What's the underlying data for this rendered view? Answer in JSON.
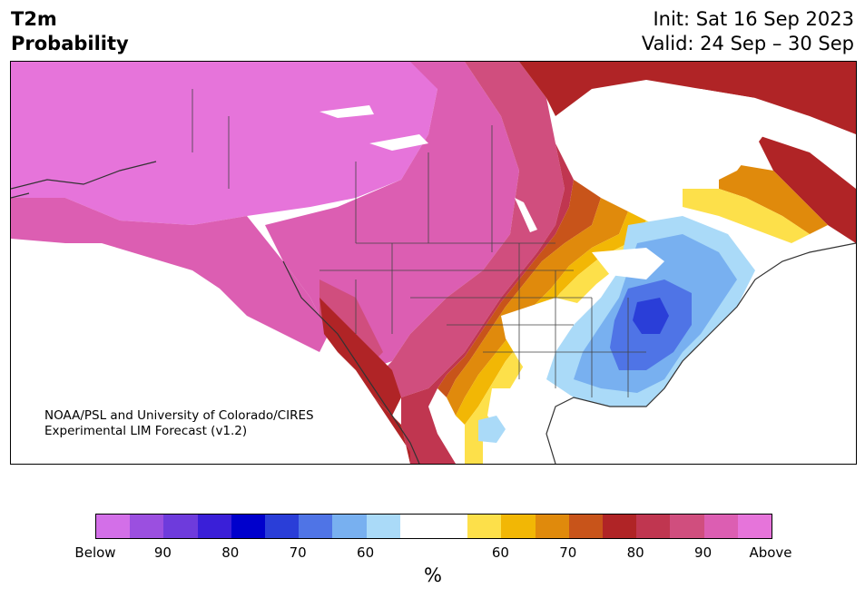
{
  "header": {
    "title_line1": "T2m",
    "title_line2": "Probability",
    "init": "Init: Sat 16 Sep 2023",
    "valid": "Valid: 24 Sep – 30 Sep"
  },
  "credit": {
    "line1": "NOAA/PSL and University of Colorado/CIRES",
    "line2": "Experimental LIM Forecast (v1.2)"
  },
  "colorbar": {
    "colors": [
      "#d36fe8",
      "#9b4fe0",
      "#6e3bdc",
      "#3a1fd8",
      "#0000cc",
      "#2a3ed8",
      "#4f74e6",
      "#78b0f0",
      "#aadaf8",
      "#ffffff",
      "#ffffff",
      "#fde04a",
      "#f2b705",
      "#e08a0c",
      "#c8541a",
      "#b02426",
      "#c03650",
      "#d04e7e",
      "#dc5eb2",
      "#e674da"
    ],
    "labels": [
      "Below",
      "90",
      "80",
      "70",
      "60",
      "60",
      "70",
      "80",
      "90",
      "Above"
    ],
    "unit": "%"
  },
  "legend_colors": {
    "above_high": "#e674da",
    "above_mid": "#d04e7e",
    "above_red": "#b02426",
    "above_orange": "#e08a0c",
    "above_yellow": "#fde04a",
    "below_light": "#aadaf8",
    "below_mid": "#78b0f0",
    "below_strong": "#2a3ed8"
  }
}
